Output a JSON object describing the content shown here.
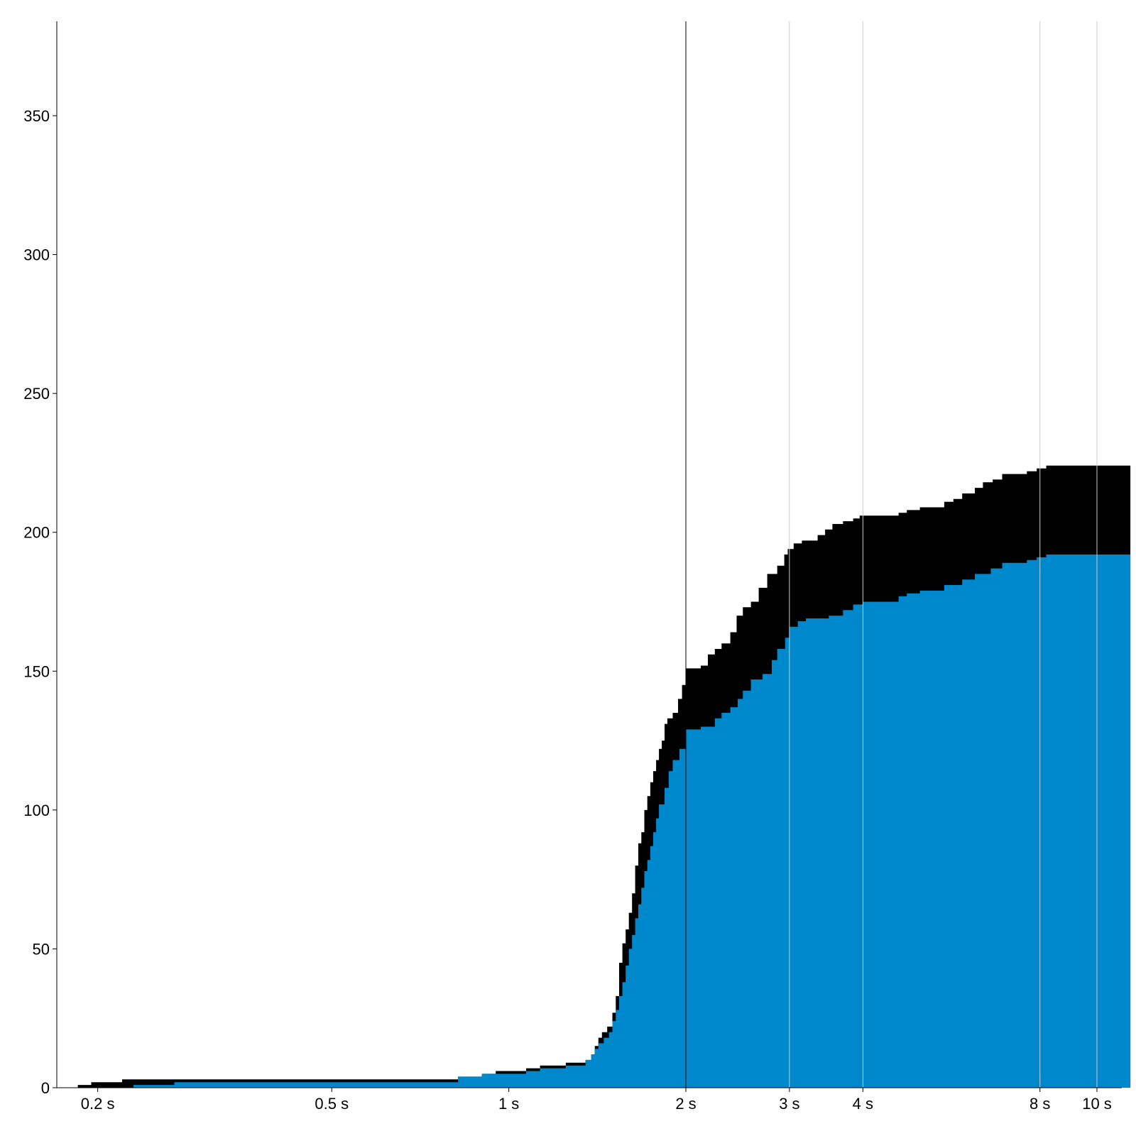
{
  "chart_data": {
    "type": "area",
    "title": "",
    "xlabel": "",
    "ylabel": "",
    "x_scale": "log",
    "xlim": [
      0.17,
      11.5
    ],
    "ylim": [
      0,
      380
    ],
    "x_ticks": [
      {
        "value": 0.2,
        "label": "0.2 s"
      },
      {
        "value": 0.5,
        "label": "0.5 s"
      },
      {
        "value": 1,
        "label": "1 s"
      },
      {
        "value": 2,
        "label": "2 s"
      },
      {
        "value": 3,
        "label": "3 s"
      },
      {
        "value": 4,
        "label": "4 s"
      },
      {
        "value": 8,
        "label": "8 s"
      },
      {
        "value": 10,
        "label": "10 s"
      }
    ],
    "y_ticks": [
      {
        "value": 0,
        "label": "0"
      },
      {
        "value": 50,
        "label": "50"
      },
      {
        "value": 100,
        "label": "100"
      },
      {
        "value": 150,
        "label": "150"
      },
      {
        "value": 200,
        "label": "200"
      },
      {
        "value": 250,
        "label": "250"
      },
      {
        "value": 300,
        "label": "300"
      },
      {
        "value": 350,
        "label": "350"
      }
    ],
    "vertical_lines": [
      {
        "x": 2,
        "color": "#000000"
      },
      {
        "x": 3,
        "color": "#cccccc"
      },
      {
        "x": 4,
        "color": "#cccccc"
      },
      {
        "x": 8,
        "color": "#cccccc"
      },
      {
        "x": 10,
        "color": "#cccccc"
      }
    ],
    "grid": false,
    "series": [
      {
        "color": "#000000",
        "step": true,
        "points": [
          [
            0.185,
            0
          ],
          [
            0.185,
            1
          ],
          [
            0.195,
            1
          ],
          [
            0.195,
            2
          ],
          [
            0.22,
            2
          ],
          [
            0.22,
            3
          ],
          [
            0.3,
            3
          ],
          [
            0.3,
            3
          ],
          [
            0.82,
            3
          ],
          [
            0.82,
            4
          ],
          [
            0.9,
            4
          ],
          [
            0.9,
            5
          ],
          [
            0.95,
            5
          ],
          [
            0.95,
            6
          ],
          [
            1.07,
            6
          ],
          [
            1.07,
            7
          ],
          [
            1.13,
            7
          ],
          [
            1.13,
            8
          ],
          [
            1.25,
            8
          ],
          [
            1.25,
            9
          ],
          [
            1.35,
            9
          ],
          [
            1.35,
            10
          ],
          [
            1.38,
            10
          ],
          [
            1.38,
            12
          ],
          [
            1.4,
            12
          ],
          [
            1.4,
            15
          ],
          [
            1.42,
            15
          ],
          [
            1.42,
            18
          ],
          [
            1.44,
            18
          ],
          [
            1.44,
            20
          ],
          [
            1.47,
            20
          ],
          [
            1.47,
            22
          ],
          [
            1.5,
            22
          ],
          [
            1.5,
            27
          ],
          [
            1.52,
            27
          ],
          [
            1.52,
            33
          ],
          [
            1.54,
            33
          ],
          [
            1.54,
            45
          ],
          [
            1.56,
            45
          ],
          [
            1.56,
            52
          ],
          [
            1.58,
            52
          ],
          [
            1.58,
            57
          ],
          [
            1.6,
            57
          ],
          [
            1.6,
            63
          ],
          [
            1.62,
            63
          ],
          [
            1.62,
            70
          ],
          [
            1.64,
            70
          ],
          [
            1.64,
            80
          ],
          [
            1.66,
            80
          ],
          [
            1.66,
            88
          ],
          [
            1.68,
            88
          ],
          [
            1.68,
            92
          ],
          [
            1.7,
            92
          ],
          [
            1.7,
            100
          ],
          [
            1.72,
            100
          ],
          [
            1.72,
            105
          ],
          [
            1.74,
            105
          ],
          [
            1.74,
            110
          ],
          [
            1.76,
            110
          ],
          [
            1.76,
            114
          ],
          [
            1.78,
            114
          ],
          [
            1.78,
            118
          ],
          [
            1.8,
            118
          ],
          [
            1.8,
            122
          ],
          [
            1.82,
            122
          ],
          [
            1.82,
            125
          ],
          [
            1.84,
            125
          ],
          [
            1.84,
            131
          ],
          [
            1.86,
            131
          ],
          [
            1.86,
            133
          ],
          [
            1.9,
            133
          ],
          [
            1.9,
            135
          ],
          [
            1.94,
            135
          ],
          [
            1.94,
            140
          ],
          [
            1.97,
            140
          ],
          [
            1.97,
            145
          ],
          [
            2.0,
            145
          ],
          [
            2.0,
            151
          ],
          [
            2.12,
            151
          ],
          [
            2.12,
            152
          ],
          [
            2.18,
            152
          ],
          [
            2.18,
            156
          ],
          [
            2.24,
            156
          ],
          [
            2.24,
            158
          ],
          [
            2.3,
            158
          ],
          [
            2.3,
            160
          ],
          [
            2.38,
            160
          ],
          [
            2.38,
            164
          ],
          [
            2.44,
            164
          ],
          [
            2.44,
            170
          ],
          [
            2.5,
            170
          ],
          [
            2.5,
            173
          ],
          [
            2.58,
            173
          ],
          [
            2.58,
            175
          ],
          [
            2.66,
            175
          ],
          [
            2.66,
            180
          ],
          [
            2.75,
            180
          ],
          [
            2.75,
            185
          ],
          [
            2.86,
            185
          ],
          [
            2.86,
            188
          ],
          [
            2.94,
            188
          ],
          [
            2.94,
            192
          ],
          [
            2.98,
            192
          ],
          [
            2.98,
            194
          ],
          [
            3.05,
            194
          ],
          [
            3.05,
            196
          ],
          [
            3.15,
            196
          ],
          [
            3.15,
            197
          ],
          [
            3.35,
            197
          ],
          [
            3.35,
            199
          ],
          [
            3.45,
            199
          ],
          [
            3.45,
            201
          ],
          [
            3.55,
            201
          ],
          [
            3.55,
            203
          ],
          [
            3.7,
            203
          ],
          [
            3.7,
            204
          ],
          [
            3.85,
            204
          ],
          [
            3.85,
            205
          ],
          [
            3.95,
            205
          ],
          [
            3.95,
            206
          ],
          [
            4.6,
            206
          ],
          [
            4.6,
            207
          ],
          [
            4.75,
            207
          ],
          [
            4.75,
            208
          ],
          [
            5.0,
            208
          ],
          [
            5.0,
            209
          ],
          [
            5.5,
            209
          ],
          [
            5.5,
            211
          ],
          [
            5.7,
            211
          ],
          [
            5.7,
            212
          ],
          [
            5.9,
            212
          ],
          [
            5.9,
            214
          ],
          [
            6.2,
            214
          ],
          [
            6.2,
            216
          ],
          [
            6.4,
            216
          ],
          [
            6.4,
            218
          ],
          [
            6.65,
            218
          ],
          [
            6.65,
            219
          ],
          [
            6.9,
            219
          ],
          [
            6.9,
            221
          ],
          [
            7.6,
            221
          ],
          [
            7.6,
            222
          ],
          [
            7.9,
            222
          ],
          [
            7.9,
            223
          ],
          [
            8.2,
            223
          ],
          [
            8.2,
            224
          ],
          [
            11.4,
            224
          ],
          [
            11.4,
            0
          ]
        ]
      },
      {
        "color": "#0088cc",
        "step": true,
        "points": [
          [
            0.23,
            0
          ],
          [
            0.23,
            1
          ],
          [
            0.27,
            1
          ],
          [
            0.27,
            2
          ],
          [
            0.82,
            2
          ],
          [
            0.82,
            4
          ],
          [
            0.9,
            4
          ],
          [
            0.9,
            5
          ],
          [
            1.07,
            5
          ],
          [
            1.07,
            6
          ],
          [
            1.13,
            6
          ],
          [
            1.13,
            7
          ],
          [
            1.25,
            7
          ],
          [
            1.25,
            8
          ],
          [
            1.35,
            8
          ],
          [
            1.35,
            10
          ],
          [
            1.38,
            10
          ],
          [
            1.38,
            12
          ],
          [
            1.4,
            12
          ],
          [
            1.4,
            14
          ],
          [
            1.42,
            14
          ],
          [
            1.42,
            16
          ],
          [
            1.45,
            16
          ],
          [
            1.45,
            18
          ],
          [
            1.48,
            18
          ],
          [
            1.48,
            20
          ],
          [
            1.5,
            20
          ],
          [
            1.5,
            24
          ],
          [
            1.52,
            24
          ],
          [
            1.52,
            28
          ],
          [
            1.54,
            28
          ],
          [
            1.54,
            33
          ],
          [
            1.56,
            33
          ],
          [
            1.56,
            38
          ],
          [
            1.58,
            38
          ],
          [
            1.58,
            44
          ],
          [
            1.6,
            44
          ],
          [
            1.6,
            50
          ],
          [
            1.62,
            50
          ],
          [
            1.62,
            55
          ],
          [
            1.64,
            55
          ],
          [
            1.64,
            61
          ],
          [
            1.66,
            61
          ],
          [
            1.66,
            66
          ],
          [
            1.68,
            66
          ],
          [
            1.68,
            72
          ],
          [
            1.7,
            72
          ],
          [
            1.7,
            78
          ],
          [
            1.72,
            78
          ],
          [
            1.72,
            82
          ],
          [
            1.74,
            82
          ],
          [
            1.74,
            87
          ],
          [
            1.76,
            87
          ],
          [
            1.76,
            92
          ],
          [
            1.78,
            92
          ],
          [
            1.78,
            97
          ],
          [
            1.8,
            97
          ],
          [
            1.8,
            102
          ],
          [
            1.84,
            102
          ],
          [
            1.84,
            108
          ],
          [
            1.87,
            108
          ],
          [
            1.87,
            114
          ],
          [
            1.9,
            114
          ],
          [
            1.9,
            118
          ],
          [
            1.95,
            118
          ],
          [
            1.95,
            122
          ],
          [
            2.0,
            122
          ],
          [
            2.0,
            129
          ],
          [
            2.12,
            129
          ],
          [
            2.12,
            130
          ],
          [
            2.24,
            130
          ],
          [
            2.24,
            133
          ],
          [
            2.3,
            133
          ],
          [
            2.3,
            135
          ],
          [
            2.38,
            135
          ],
          [
            2.38,
            137
          ],
          [
            2.45,
            137
          ],
          [
            2.45,
            140
          ],
          [
            2.5,
            140
          ],
          [
            2.5,
            143
          ],
          [
            2.58,
            143
          ],
          [
            2.58,
            147
          ],
          [
            2.7,
            147
          ],
          [
            2.7,
            149
          ],
          [
            2.8,
            149
          ],
          [
            2.8,
            154
          ],
          [
            2.86,
            154
          ],
          [
            2.86,
            158
          ],
          [
            2.95,
            158
          ],
          [
            2.95,
            162
          ],
          [
            3.0,
            162
          ],
          [
            3.0,
            166
          ],
          [
            3.1,
            166
          ],
          [
            3.1,
            168
          ],
          [
            3.2,
            168
          ],
          [
            3.2,
            169
          ],
          [
            3.5,
            169
          ],
          [
            3.5,
            170
          ],
          [
            3.7,
            170
          ],
          [
            3.7,
            172
          ],
          [
            3.85,
            172
          ],
          [
            3.85,
            174
          ],
          [
            4.0,
            174
          ],
          [
            4.0,
            175
          ],
          [
            4.6,
            175
          ],
          [
            4.6,
            177
          ],
          [
            4.75,
            177
          ],
          [
            4.75,
            178
          ],
          [
            5.0,
            178
          ],
          [
            5.0,
            179
          ],
          [
            5.5,
            179
          ],
          [
            5.5,
            181
          ],
          [
            5.9,
            181
          ],
          [
            5.9,
            183
          ],
          [
            6.2,
            183
          ],
          [
            6.2,
            185
          ],
          [
            6.6,
            185
          ],
          [
            6.6,
            187
          ],
          [
            6.9,
            187
          ],
          [
            6.9,
            189
          ],
          [
            7.6,
            189
          ],
          [
            7.6,
            190
          ],
          [
            7.9,
            190
          ],
          [
            7.9,
            191
          ],
          [
            8.2,
            191
          ],
          [
            8.2,
            192
          ],
          [
            11.4,
            192
          ],
          [
            11.4,
            0
          ]
        ]
      }
    ]
  }
}
